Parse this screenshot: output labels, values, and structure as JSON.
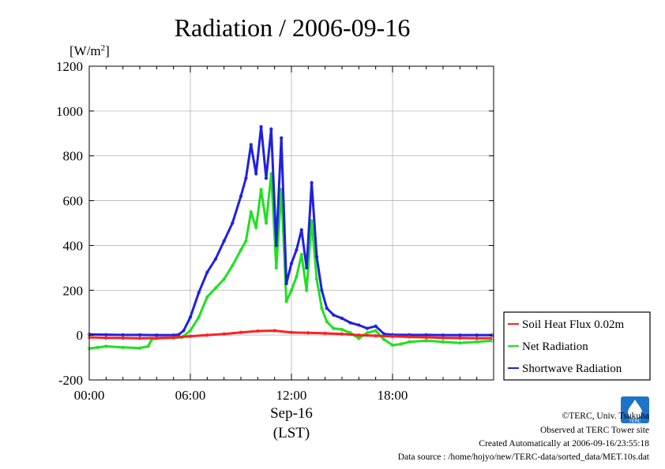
{
  "chart_data": {
    "type": "line",
    "title": "Radiation / 2006-09-16",
    "ylabel_unit": "[W/m",
    "ylabel_sup": "2",
    "ylabel_close": "]",
    "ylim": [
      -200,
      1200
    ],
    "yticks": [
      -200,
      0,
      200,
      400,
      600,
      800,
      1000,
      1200
    ],
    "ytick_labels": [
      "-200",
      "0",
      "200",
      "400",
      "600",
      "800",
      "1000",
      "1200"
    ],
    "xlim_hours": [
      0,
      24
    ],
    "xticks_hours": [
      0,
      6,
      12,
      18
    ],
    "xtick_labels": [
      "00:00",
      "06:00",
      "12:00",
      "18:00"
    ],
    "xlabel_date": "Sep-16",
    "xlabel_tz": "(LST)",
    "grid": true,
    "legend_position": "outside-right-bottom",
    "series": [
      {
        "name": "Soil Heat Flux 0.02m",
        "color": "#ff2020",
        "x": [
          0,
          1,
          2,
          3,
          4,
          5,
          6,
          7,
          8,
          9,
          10,
          11,
          12,
          13,
          14,
          15,
          16,
          17,
          18,
          19,
          20,
          21,
          22,
          23,
          23.9
        ],
        "y": [
          -10,
          -12,
          -13,
          -14,
          -13,
          -11,
          -5,
          0,
          5,
          12,
          18,
          20,
          12,
          10,
          8,
          5,
          0,
          -3,
          -6,
          -8,
          -10,
          -12,
          -13,
          -14,
          -14
        ]
      },
      {
        "name": "Net Radiation",
        "color": "#20e020",
        "x": [
          0,
          0.5,
          1,
          2,
          3,
          3.5,
          3.7,
          4,
          5,
          5.5,
          6,
          6.5,
          7,
          7.5,
          8,
          8.5,
          9,
          9.3,
          9.6,
          9.9,
          10.2,
          10.5,
          10.8,
          11.1,
          11.4,
          11.7,
          12,
          12.3,
          12.6,
          12.9,
          13.2,
          13.5,
          13.8,
          14.1,
          14.5,
          15,
          15.5,
          16,
          16.5,
          17,
          17.5,
          18,
          18.5,
          19,
          20,
          21,
          22,
          23,
          23.9
        ],
        "y": [
          -60,
          -55,
          -50,
          -55,
          -58,
          -50,
          -20,
          -15,
          -12,
          -10,
          20,
          80,
          170,
          210,
          250,
          310,
          380,
          420,
          550,
          480,
          650,
          500,
          720,
          300,
          650,
          150,
          200,
          260,
          360,
          200,
          510,
          250,
          120,
          60,
          30,
          25,
          10,
          -15,
          10,
          20,
          -20,
          -45,
          -40,
          -30,
          -25,
          -30,
          -35,
          -30,
          -25
        ]
      },
      {
        "name": "Shortwave Radiation",
        "color": "#2020e0",
        "x": [
          0,
          1,
          2,
          3,
          4,
          5,
          5.3,
          5.6,
          6,
          6.5,
          7,
          7.5,
          8,
          8.5,
          9,
          9.3,
          9.6,
          9.9,
          10.2,
          10.5,
          10.8,
          11.1,
          11.4,
          11.7,
          12,
          12.3,
          12.6,
          12.9,
          13.2,
          13.5,
          13.8,
          14.1,
          14.5,
          15,
          15.5,
          16,
          16.5,
          17,
          17.5,
          18,
          19,
          20,
          21,
          22,
          23,
          23.9
        ],
        "y": [
          3,
          2,
          1,
          1,
          0,
          0,
          2,
          20,
          80,
          190,
          280,
          340,
          420,
          500,
          620,
          700,
          850,
          720,
          930,
          700,
          920,
          400,
          880,
          230,
          320,
          380,
          470,
          300,
          680,
          350,
          200,
          120,
          90,
          75,
          55,
          45,
          30,
          40,
          5,
          2,
          1,
          1,
          0,
          0,
          0,
          0
        ]
      }
    ]
  },
  "legend": {
    "items": [
      {
        "label": "Soil Heat Flux 0.02m",
        "color": "#ff2020"
      },
      {
        "label": "Net Radiation",
        "color": "#20e020"
      },
      {
        "label": "Shortwave Radiation",
        "color": "#2020e0"
      }
    ]
  },
  "footer": {
    "copyright": "©TERC, Univ. Tsukuba",
    "observed": "Observed at TERC Tower site",
    "created": "Created Automatically at 2006-09-16/23:55:18",
    "source": "Data source : /home/hojyo/new/TERC-data/sorted_data/MET.10s.dat",
    "logo_text": "TERC",
    "logo_color": "#1e73c8"
  }
}
